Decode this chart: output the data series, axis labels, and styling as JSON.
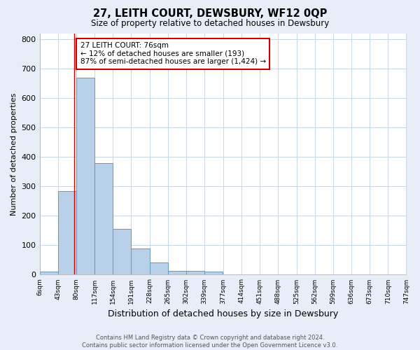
{
  "title": "27, LEITH COURT, DEWSBURY, WF12 0QP",
  "subtitle": "Size of property relative to detached houses in Dewsbury",
  "xlabel": "Distribution of detached houses by size in Dewsbury",
  "ylabel": "Number of detached properties",
  "footer_line1": "Contains HM Land Registry data © Crown copyright and database right 2024.",
  "footer_line2": "Contains public sector information licensed under the Open Government Licence v3.0.",
  "property_size": 76,
  "property_line_color": "#cc0000",
  "bar_color": "#b8d0e8",
  "bar_edge_color": "#6699bb",
  "annotation_line1": "27 LEITH COURT: 76sqm",
  "annotation_line2": "← 12% of detached houses are smaller (193)",
  "annotation_line3": "87% of semi-detached houses are larger (1,424) →",
  "annotation_box_color": "#cc0000",
  "bin_edges": [
    6,
    43,
    80,
    117,
    154,
    191,
    228,
    265,
    302,
    339,
    377,
    414,
    451,
    488,
    525,
    562,
    599,
    636,
    673,
    710,
    747
  ],
  "bin_counts": [
    10,
    285,
    670,
    378,
    155,
    88,
    42,
    13,
    13,
    10,
    0,
    0,
    0,
    0,
    0,
    0,
    0,
    0,
    0,
    0
  ],
  "tick_labels": [
    "6sqm",
    "43sqm",
    "80sqm",
    "117sqm",
    "154sqm",
    "191sqm",
    "228sqm",
    "265sqm",
    "302sqm",
    "339sqm",
    "377sqm",
    "414sqm",
    "451sqm",
    "488sqm",
    "525sqm",
    "562sqm",
    "599sqm",
    "636sqm",
    "673sqm",
    "710sqm",
    "747sqm"
  ],
  "ylim": [
    0,
    820
  ],
  "yticks": [
    0,
    100,
    200,
    300,
    400,
    500,
    600,
    700,
    800
  ],
  "background_color": "#e8eef8",
  "plot_background_color": "#ffffff",
  "grid_color": "#c8d4e8"
}
